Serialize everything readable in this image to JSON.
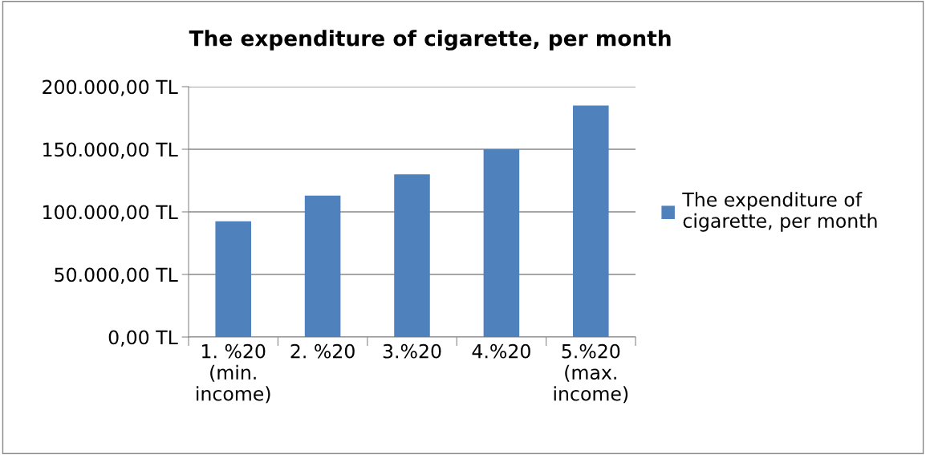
{
  "chart_data": {
    "type": "bar",
    "title": "The expenditure of cigarette, per month",
    "categories": [
      "1. %20\n(min.\nincome)",
      "2. %20",
      "3.%20",
      "4.%20",
      "5.%20\n(max.\nincome)"
    ],
    "series": [
      {
        "name": "The expenditure of\ncigarette, per month",
        "color": "#4f81bd",
        "values": [
          92500,
          113000,
          130000,
          150000,
          185000
        ]
      }
    ],
    "ylim": [
      0,
      200000
    ],
    "yticks": [
      {
        "value": 0,
        "label": "0,00 TL"
      },
      {
        "value": 50000,
        "label": "50.000,00 TL"
      },
      {
        "value": 100000,
        "label": "100.000,00 TL"
      },
      {
        "value": 150000,
        "label": "150.000,00 TL"
      },
      {
        "value": 200000,
        "label": "200.000,00 TL"
      }
    ],
    "grid": "y",
    "legend": "right"
  }
}
